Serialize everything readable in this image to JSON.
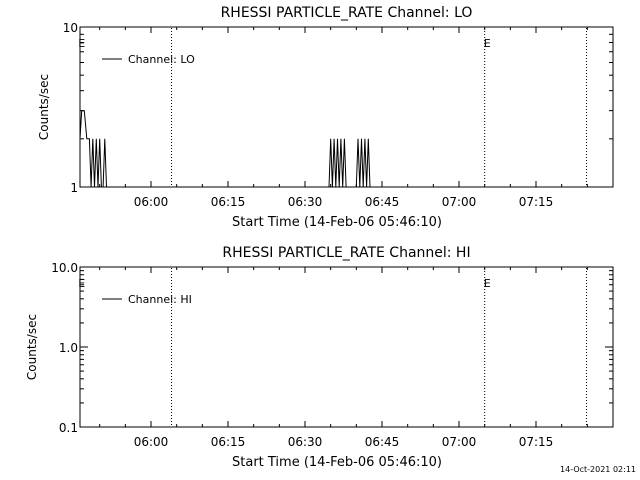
{
  "chart_data": [
    {
      "type": "line",
      "title": "RHESSI PARTICLE_RATE Channel: LO",
      "xlabel": "Start Time (14-Feb-06 05:46:10)",
      "ylabel": "Counts/sec",
      "yscale": "log",
      "ylim": [
        1,
        10
      ],
      "xlim": [
        "05:46:10",
        "07:30:00"
      ],
      "xticks": [
        "06:00",
        "06:15",
        "06:30",
        "06:45",
        "07:00",
        "07:15"
      ],
      "yticks": [
        "1",
        "10"
      ],
      "legend": {
        "placement": "top-left",
        "entries": [
          "Channel: LO"
        ]
      },
      "annotations": [
        {
          "text": "E",
          "x": "05:46:30"
        },
        {
          "text": "E",
          "x": "07:05:30"
        }
      ],
      "vlines": [
        "06:04:00",
        "07:05:00",
        "07:24:50"
      ],
      "series": [
        {
          "name": "Channel: LO",
          "x": [
            "05:46:10",
            "05:46:30",
            "05:47:00",
            "05:47:30",
            "05:48:00",
            "05:48:20",
            "05:48:40",
            "05:49:00",
            "05:49:20",
            "05:49:40",
            "05:50:00",
            "05:50:20",
            "05:50:40",
            "05:51:00",
            "05:51:20",
            "06:34:40",
            "06:35:00",
            "06:35:20",
            "06:35:40",
            "06:36:00",
            "06:36:20",
            "06:36:40",
            "06:37:00",
            "06:37:20",
            "06:37:40",
            "06:38:00",
            "06:40:00",
            "06:40:20",
            "06:40:40",
            "06:41:00",
            "06:41:20",
            "06:41:40",
            "06:42:00",
            "06:42:20",
            "06:42:40",
            "06:43:00"
          ],
          "y": [
            2,
            3,
            3,
            2,
            2,
            1,
            2,
            1,
            2,
            1,
            2,
            1,
            1,
            2,
            1,
            1,
            2,
            1,
            2,
            1,
            2,
            1,
            2,
            1,
            2,
            1,
            1,
            2,
            1,
            2,
            1,
            2,
            1,
            2,
            1,
            1
          ]
        }
      ]
    },
    {
      "type": "line",
      "title": "RHESSI PARTICLE_RATE Channel: HI",
      "xlabel": "Start Time (14-Feb-06 05:46:10)",
      "ylabel": "Counts/sec",
      "yscale": "log",
      "ylim": [
        0.1,
        10
      ],
      "xlim": [
        "05:46:10",
        "07:30:00"
      ],
      "xticks": [
        "06:00",
        "06:15",
        "06:30",
        "06:45",
        "07:00",
        "07:15"
      ],
      "yticks": [
        "0.1",
        "1.0",
        "10.0"
      ],
      "legend": {
        "placement": "top-left",
        "entries": [
          "Channel: HI"
        ]
      },
      "annotations": [
        {
          "text": "E",
          "x": "05:46:30"
        },
        {
          "text": "E",
          "x": "07:05:30"
        }
      ],
      "vlines": [
        "06:04:00",
        "07:05:00",
        "07:24:50"
      ],
      "series": [
        {
          "name": "Channel: HI",
          "x": [],
          "y": []
        }
      ]
    }
  ],
  "footer": {
    "timestamp": "14-Oct-2021 02:11"
  }
}
